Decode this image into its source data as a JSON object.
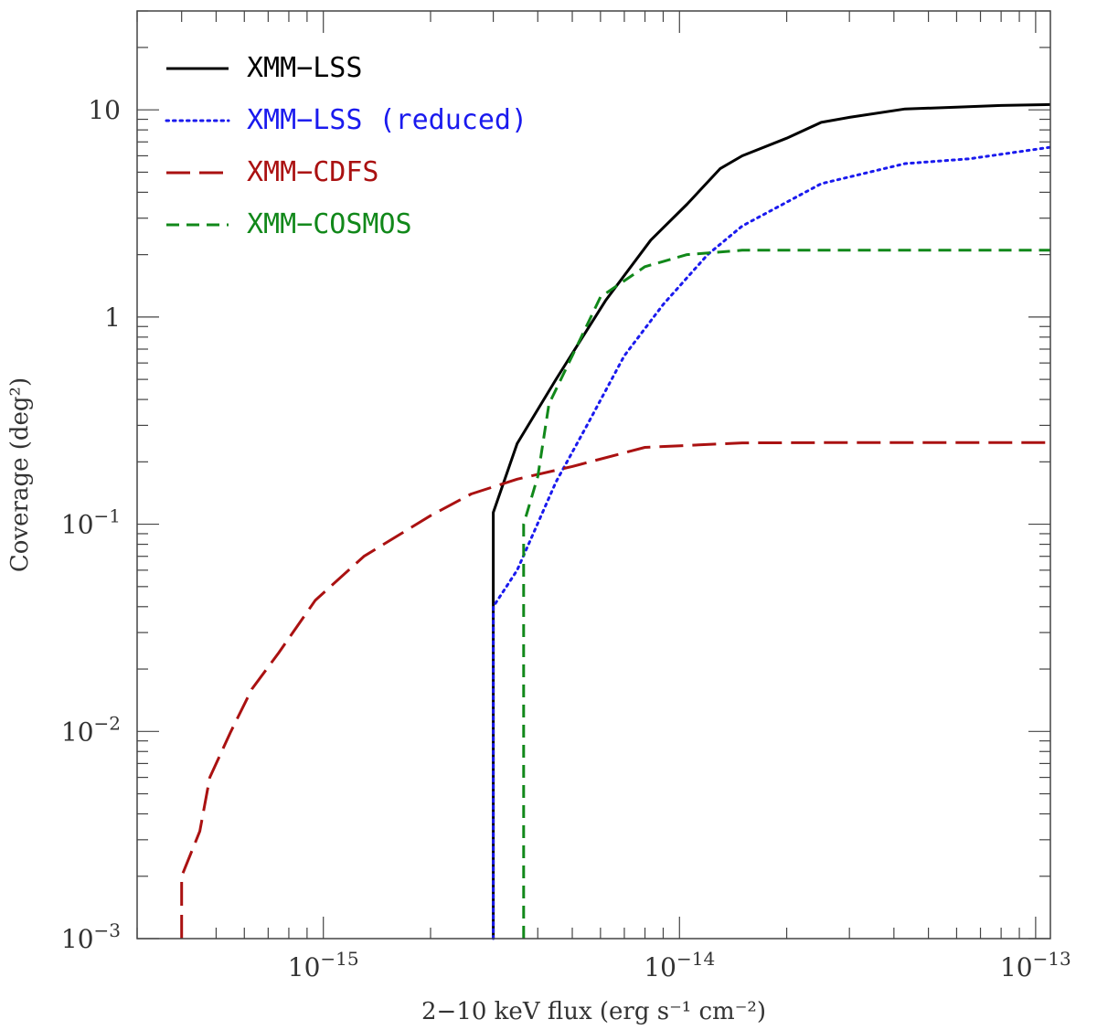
{
  "chart_data": {
    "type": "line",
    "xlabel": "2−10 keV flux (erg s⁻¹ cm⁻²)",
    "ylabel": "Coverage (deg²)",
    "xscale": "log",
    "yscale": "log",
    "xlim": [
      3e-16,
      1.1e-13
    ],
    "ylim": [
      0.001,
      30
    ],
    "x_ticks": [
      {
        "value": 1e-15,
        "base": "10",
        "exp": "−15"
      },
      {
        "value": 1e-14,
        "base": "10",
        "exp": "−14"
      },
      {
        "value": 1e-13,
        "base": "10",
        "exp": "−13"
      }
    ],
    "y_ticks": [
      {
        "value": 0.001,
        "base": "10",
        "exp": "−3"
      },
      {
        "value": 0.01,
        "base": "10",
        "exp": "−2"
      },
      {
        "value": 0.1,
        "base": "10",
        "exp": "−1"
      },
      {
        "value": 1,
        "base": "1",
        "exp": ""
      },
      {
        "value": 10,
        "base": "10",
        "exp": ""
      }
    ],
    "legend_position": "top-left",
    "series": [
      {
        "name": "XMM−LSS",
        "color": "#000000",
        "style": "solid",
        "points": [
          [
            3e-15,
            0.001
          ],
          [
            3e-15,
            0.114
          ],
          [
            3.5e-15,
            0.245
          ],
          [
            4.5e-15,
            0.5
          ],
          [
            6.2e-15,
            1.2
          ],
          [
            8.3e-15,
            2.35
          ],
          [
            1.05e-14,
            3.5
          ],
          [
            1.3e-14,
            5.2
          ],
          [
            1.5e-14,
            6.0
          ],
          [
            2e-14,
            7.3
          ],
          [
            2.5e-14,
            8.7
          ],
          [
            3e-14,
            9.2
          ],
          [
            4.3e-14,
            10.1
          ],
          [
            6e-14,
            10.3
          ],
          [
            8e-14,
            10.5
          ],
          [
            1.1e-13,
            10.6
          ]
        ]
      },
      {
        "name": "XMM−LSS (reduced)",
        "color": "#1a1aee",
        "style": "dotted",
        "points": [
          [
            3e-15,
            0.001
          ],
          [
            3e-15,
            0.04
          ],
          [
            3.5e-15,
            0.06
          ],
          [
            4.5e-15,
            0.16
          ],
          [
            5.5e-15,
            0.3
          ],
          [
            7e-15,
            0.65
          ],
          [
            9e-15,
            1.15
          ],
          [
            1.2e-14,
            2.0
          ],
          [
            1.5e-14,
            2.75
          ],
          [
            2.5e-14,
            4.4
          ],
          [
            4.3e-14,
            5.5
          ],
          [
            6.5e-14,
            5.8
          ],
          [
            1.1e-13,
            6.6
          ]
        ]
      },
      {
        "name": "XMM−CDFS",
        "color": "#aa1111",
        "style": "longdash",
        "points": [
          [
            4e-16,
            0.001
          ],
          [
            4e-16,
            0.002
          ],
          [
            4.5e-16,
            0.0033
          ],
          [
            4.8e-16,
            0.006
          ],
          [
            5.5e-16,
            0.01
          ],
          [
            6.3e-16,
            0.016
          ],
          [
            7.5e-16,
            0.024
          ],
          [
            9.5e-16,
            0.043
          ],
          [
            1.3e-15,
            0.07
          ],
          [
            2e-15,
            0.11
          ],
          [
            2.6e-15,
            0.14
          ],
          [
            3.5e-15,
            0.165
          ],
          [
            5e-15,
            0.19
          ],
          [
            8e-15,
            0.235
          ],
          [
            1.5e-14,
            0.247
          ],
          [
            3e-14,
            0.248
          ],
          [
            1.1e-13,
            0.248
          ]
        ]
      },
      {
        "name": "XMM−COSMOS",
        "color": "#11881a",
        "style": "dashed",
        "points": [
          [
            3.65e-15,
            0.001
          ],
          [
            3.65e-15,
            0.1
          ],
          [
            4e-15,
            0.17
          ],
          [
            4.3e-15,
            0.38
          ],
          [
            5e-15,
            0.65
          ],
          [
            6e-15,
            1.25
          ],
          [
            8e-15,
            1.75
          ],
          [
            1.05e-14,
            2.0
          ],
          [
            1.5e-14,
            2.1
          ],
          [
            3e-14,
            2.1
          ],
          [
            1.1e-13,
            2.1
          ]
        ]
      }
    ]
  }
}
